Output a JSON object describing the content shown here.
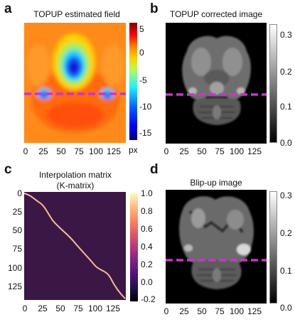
{
  "panels": {
    "a": {
      "label": "a",
      "title": "TOPUP estimated field",
      "x_ticks": [
        "0",
        "25",
        "50",
        "75",
        "100",
        "125"
      ],
      "cbar_ticks": [
        "5",
        "0",
        "-5",
        "-10",
        "-15"
      ],
      "cbar_unit": "px",
      "colormap": "jet",
      "dashed_line_color": "#cc33cc"
    },
    "b": {
      "label": "b",
      "title": "TOPUP corrected image",
      "x_ticks": [
        "0",
        "25",
        "50",
        "75",
        "100",
        "125"
      ],
      "cbar_ticks": [
        "0.3",
        "0.2",
        "0.1",
        "0.0"
      ],
      "colormap": "gray",
      "dashed_line_color": "#cc33cc"
    },
    "c": {
      "label": "c",
      "title_line1": "Interpolation matrix",
      "title_line2": "(K-matrix)",
      "x_ticks": [
        "0",
        "25",
        "50",
        "75",
        "100",
        "125"
      ],
      "y_ticks": [
        "0",
        "25",
        "50",
        "75",
        "100",
        "125"
      ],
      "cbar_ticks": [
        "1.0",
        "0.8",
        "0.6",
        "0.4",
        "0.2",
        "0.0",
        "-0.2"
      ],
      "colormap": "magma"
    },
    "d": {
      "label": "d",
      "title": "Blip-up image",
      "x_ticks": [
        "0",
        "25",
        "50",
        "75",
        "100",
        "125"
      ],
      "cbar_ticks": [
        "0.3",
        "0.2",
        "0.1",
        "0.0"
      ],
      "colormap": "gray",
      "dashed_line_color": "#cc33cc"
    }
  },
  "colors": {
    "dashed_line": "#cc33cc",
    "kmatrix_bg": "#3a1745",
    "kmatrix_diag": "#f7b98a"
  }
}
